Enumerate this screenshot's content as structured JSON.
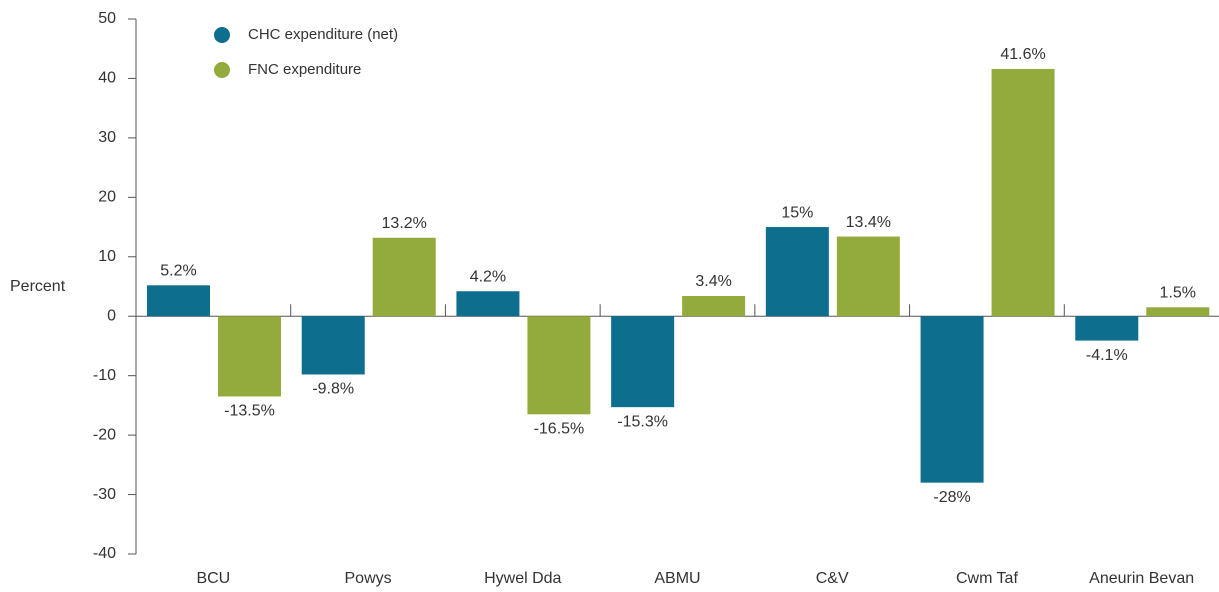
{
  "chart_data": {
    "type": "bar",
    "y_label": "Percent",
    "categories": [
      "BCU",
      "Powys",
      "Hywel Dda",
      "ABMU",
      "C&V",
      "Cwm Taf",
      "Aneurin Bevan"
    ],
    "series": [
      {
        "name": "CHC expenditure (net)",
        "color": "#0e6e8e",
        "values": [
          5.2,
          -9.8,
          4.2,
          -15.3,
          15,
          -28,
          -4.1
        ],
        "value_labels": [
          "5.2%",
          "-9.8%",
          "4.2%",
          "-15.3%",
          "15%",
          "-28%",
          "-4.1%"
        ]
      },
      {
        "name": "FNC expenditure",
        "color": "#93ab3c",
        "values": [
          -13.5,
          13.2,
          -16.5,
          3.4,
          13.4,
          41.6,
          1.5
        ],
        "value_labels": [
          "-13.5%",
          "13.2%",
          "-16.5%",
          "3.4%",
          "13.4%",
          "41.6%",
          "1.5%"
        ]
      }
    ],
    "ylim": [
      -40,
      50
    ],
    "yticks": [
      -40,
      -30,
      -20,
      -10,
      0,
      10,
      20,
      30,
      40,
      50
    ],
    "legend": "upper left"
  }
}
